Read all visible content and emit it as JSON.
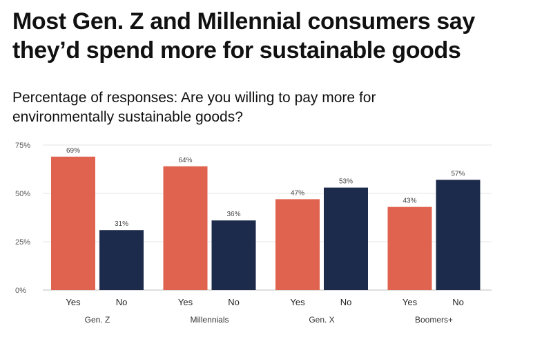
{
  "headline": {
    "line1": "Most Gen. Z and Millennial consumers say",
    "line2": "they’d spend more for sustainable goods"
  },
  "subtitle": {
    "line1": "Percentage of responses: Are you willing to pay more for",
    "line2": "environmentally sustainable goods?"
  },
  "colors": {
    "yes": "#e0634f",
    "no": "#1c2b4b",
    "grid": "#e6e6e6",
    "axis": "#bdbdbd"
  },
  "chart_data": {
    "type": "bar",
    "title": "Percentage of responses: Are you willing to pay more for environmentally sustainable goods?",
    "xlabel": "",
    "ylabel": "",
    "ylim": [
      0,
      75
    ],
    "yticks": [
      0,
      25,
      50,
      75
    ],
    "ytick_labels": [
      "0%",
      "25%",
      "50%",
      "75%"
    ],
    "grid": true,
    "categories": [
      "Gen. Z",
      "Millennials",
      "Gen. X",
      "Boomers+"
    ],
    "series": [
      {
        "name": "Yes",
        "values": [
          69,
          64,
          47,
          43
        ],
        "labels": [
          "69%",
          "64%",
          "47%",
          "43%"
        ]
      },
      {
        "name": "No",
        "values": [
          31,
          36,
          53,
          57
        ],
        "labels": [
          "31%",
          "36%",
          "53%",
          "57%"
        ]
      }
    ]
  }
}
